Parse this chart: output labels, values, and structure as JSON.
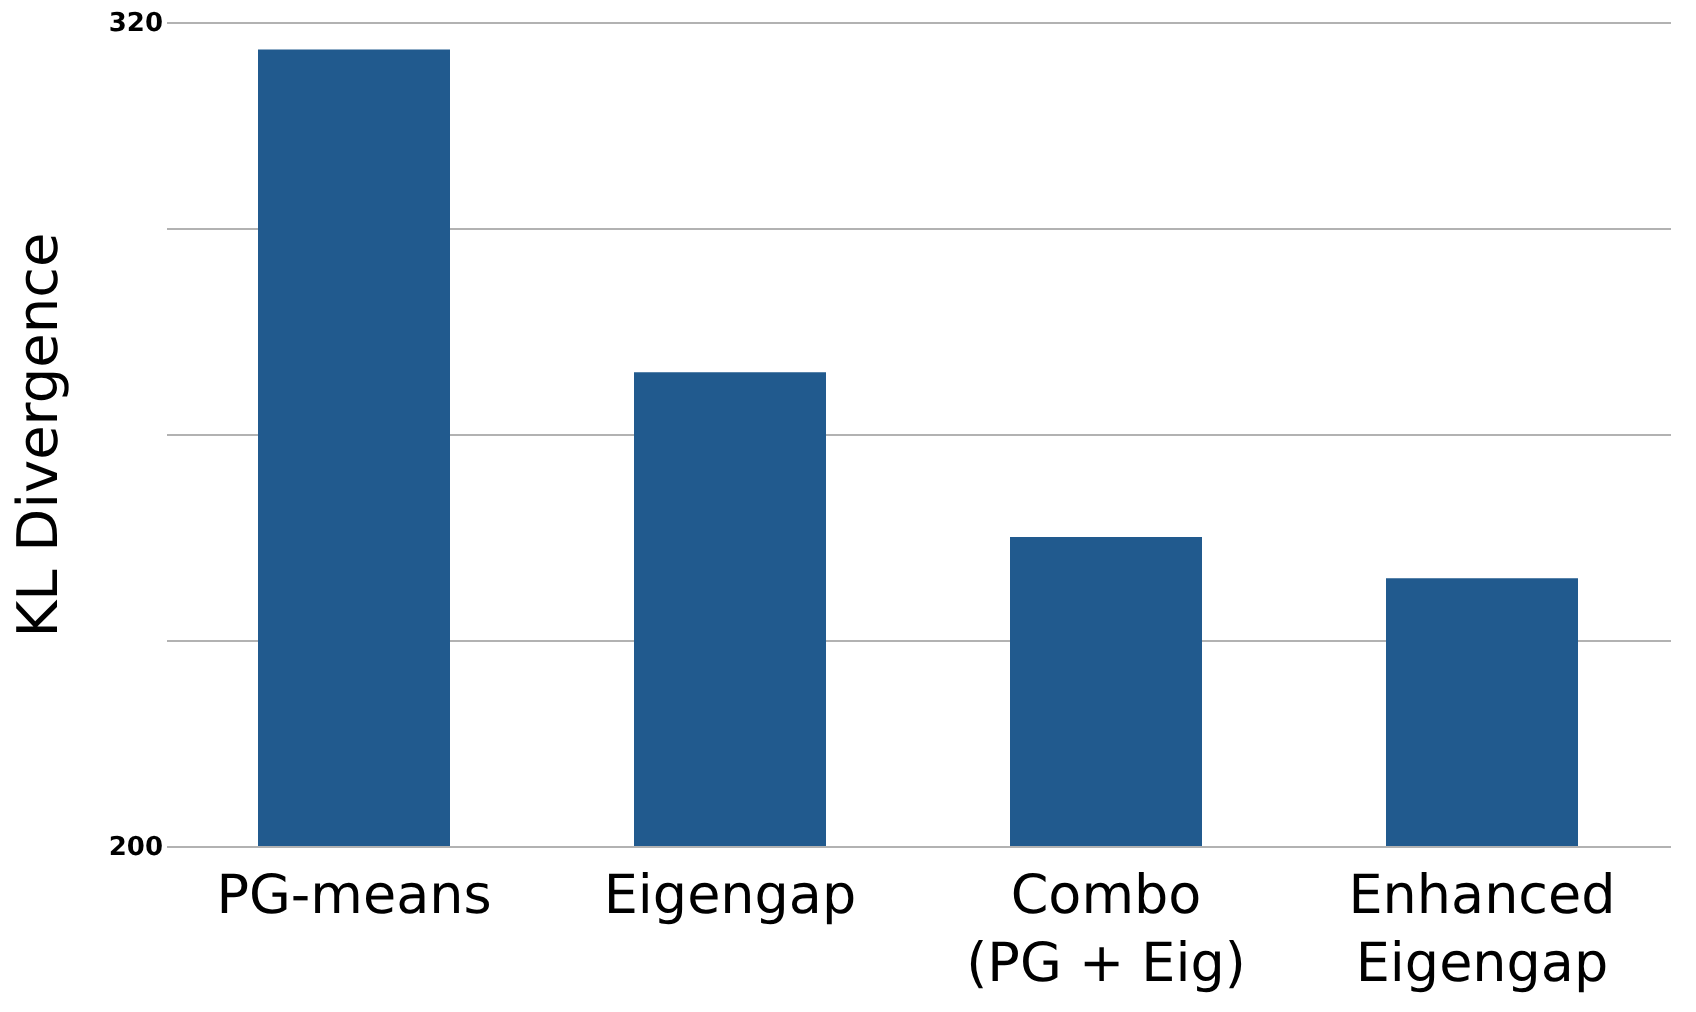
{
  "chart_data": {
    "type": "bar",
    "ylabel": "KL Divergence",
    "categories": [
      "PG-means",
      "Eigengap",
      "Combo\n(PG + Eig)",
      "Enhanced\nEigengap"
    ],
    "values": [
      316,
      269,
      245,
      239
    ],
    "color": "#215a8e",
    "ylim": [
      200,
      320
    ],
    "yticks": [
      200,
      {
        "value": 230,
        "label": null
      },
      {
        "value": 260,
        "label": null
      },
      {
        "value": 290,
        "label": null
      },
      320
    ],
    "grid": "y"
  }
}
